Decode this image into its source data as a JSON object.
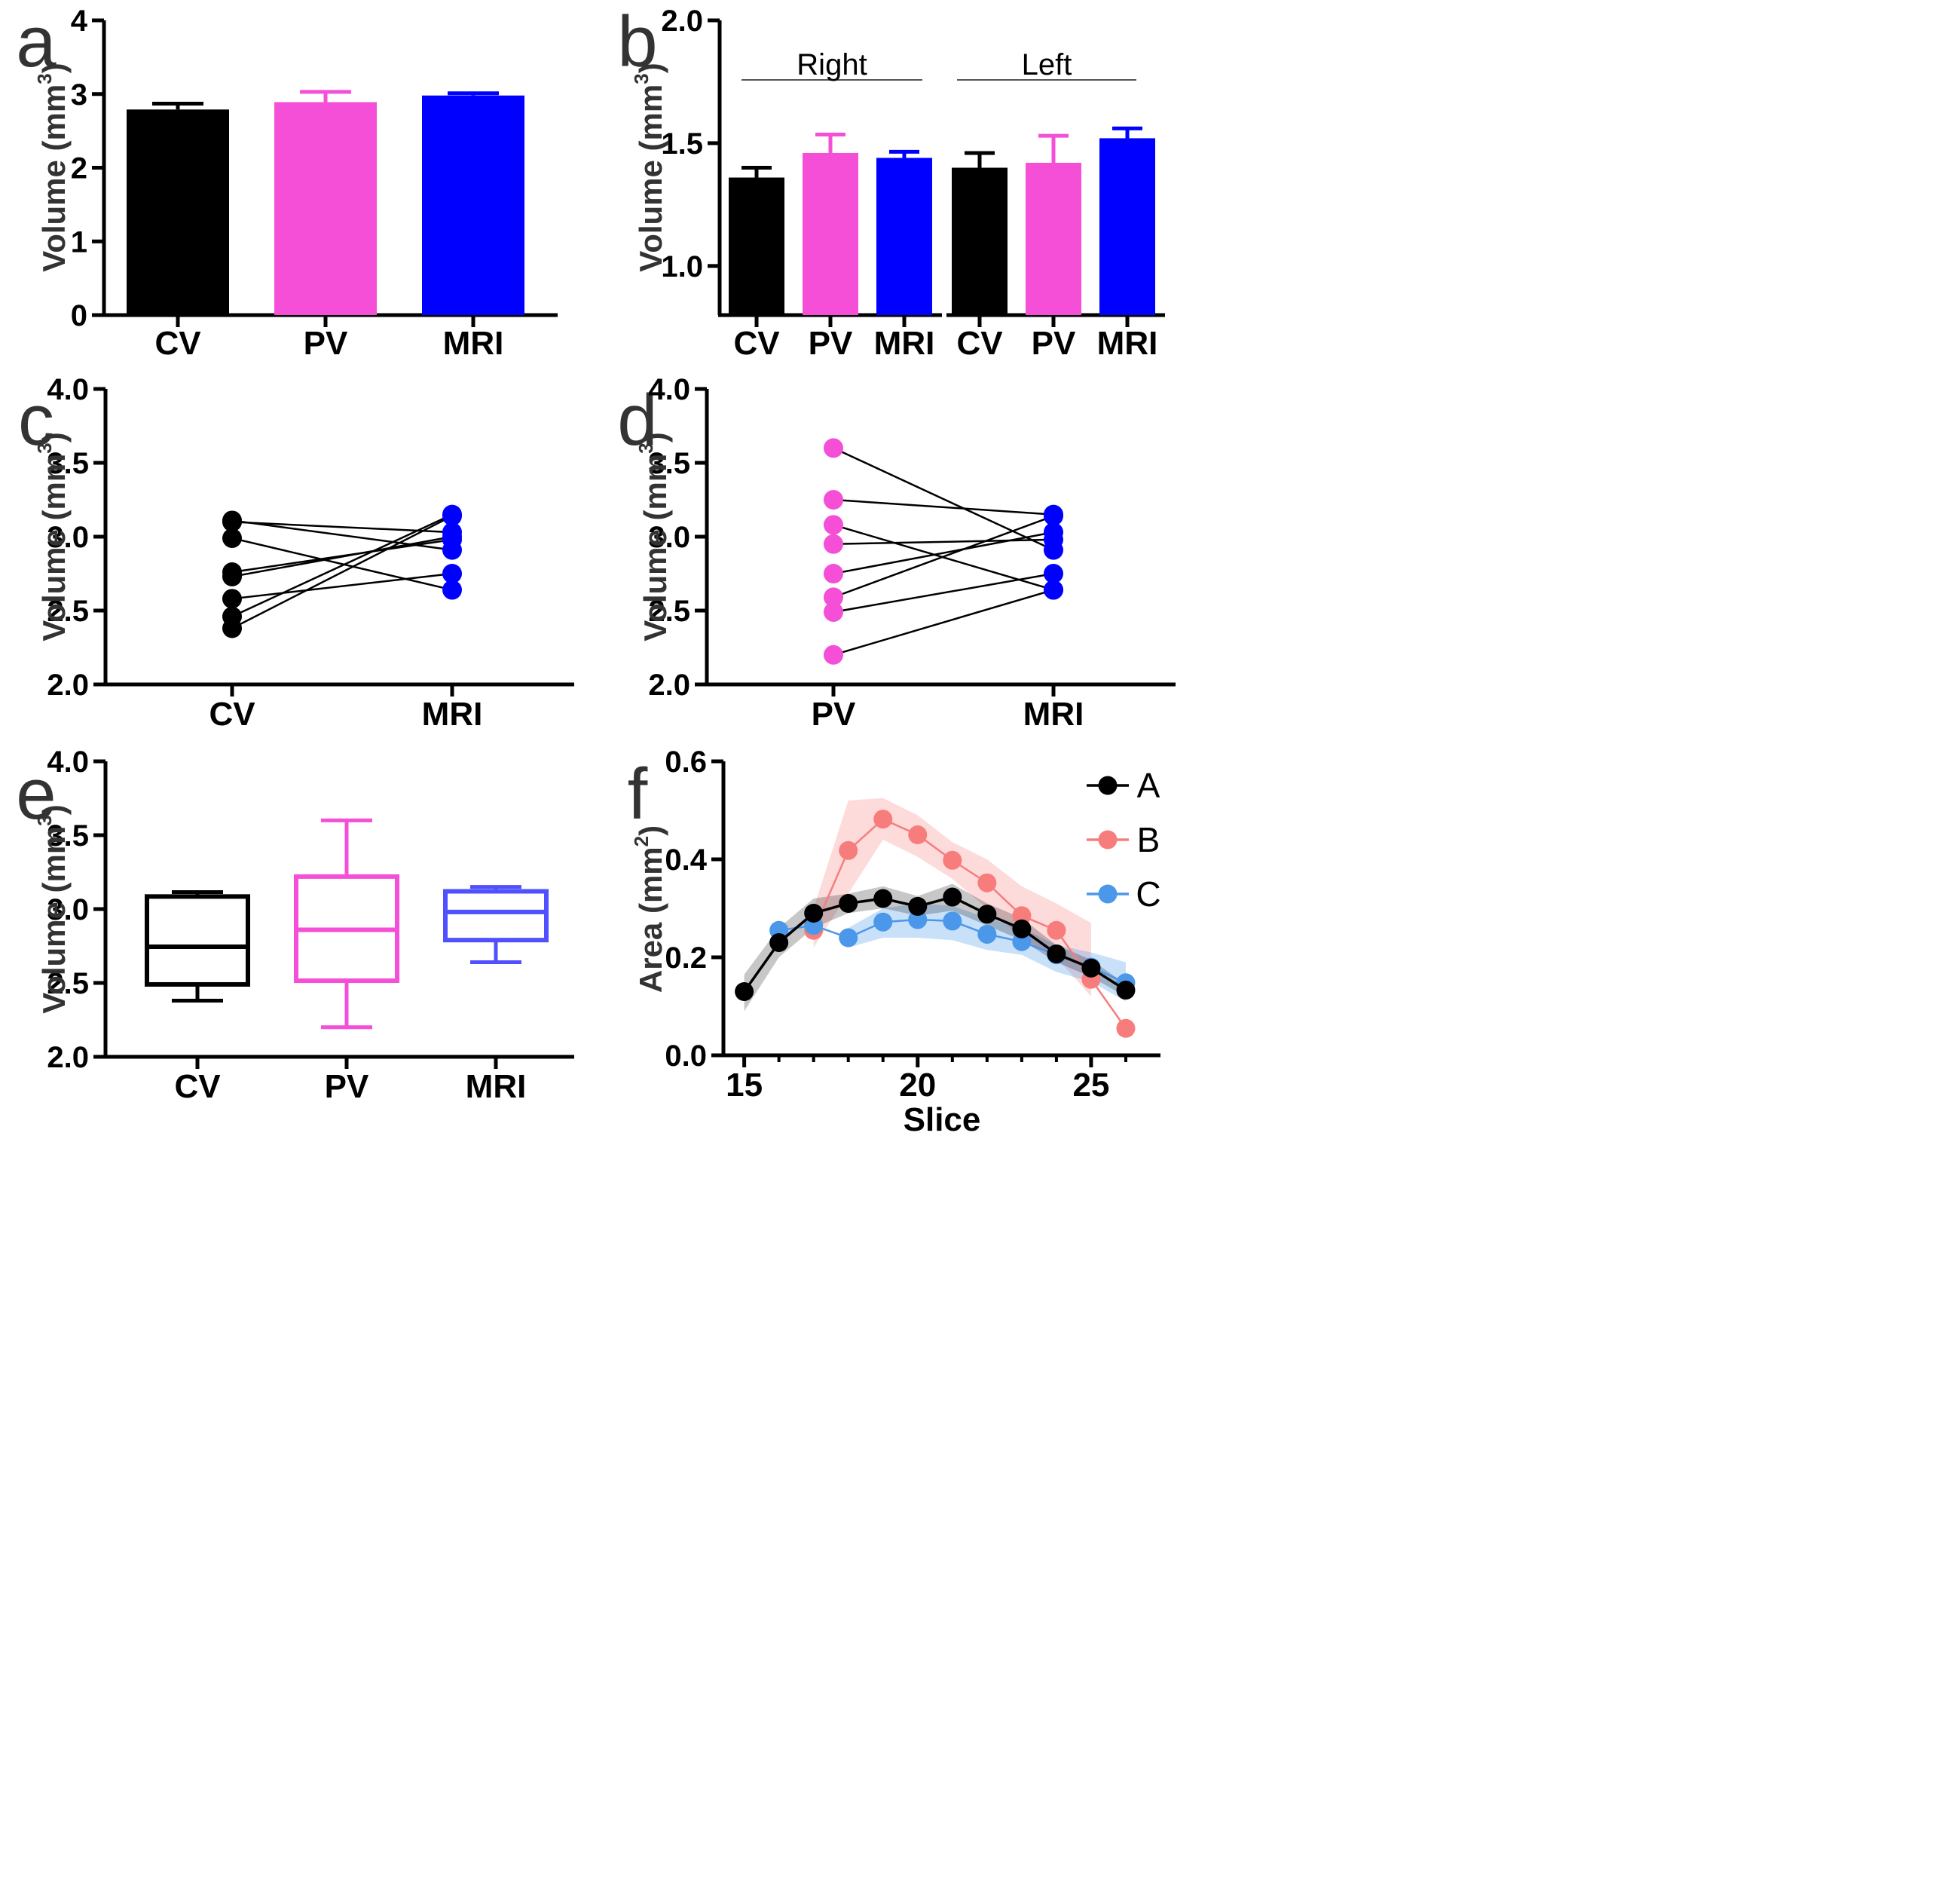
{
  "colors": {
    "cv": "#000000",
    "pv": "#f44fd6",
    "mri": "#0000ff",
    "mri_light": "#5050ff",
    "b": "#f77d7d",
    "c": "#4b97ea"
  },
  "chart_data": [
    {
      "id": "a",
      "panel_label": "a",
      "type": "bar",
      "categories": [
        "CV",
        "PV",
        "MRI"
      ],
      "values": [
        2.79,
        2.89,
        2.98
      ],
      "errors": [
        0.08,
        0.14,
        0.03
      ],
      "ylabel": "Volume (mm",
      "ylabel_sup": "3",
      "ylabel_close": ")",
      "ylim": [
        0,
        4
      ],
      "yticks": [
        "0",
        "1",
        "2",
        "3",
        "4"
      ]
    },
    {
      "id": "b",
      "panel_label": "b",
      "type": "bar",
      "groups": [
        {
          "label": "Right",
          "categories": [
            "CV",
            "PV",
            "MRI"
          ],
          "values": [
            1.36,
            1.46,
            1.44
          ],
          "errors": [
            0.04,
            0.075,
            0.025
          ]
        },
        {
          "label": "Left",
          "categories": [
            "CV",
            "PV",
            "MRI"
          ],
          "values": [
            1.4,
            1.42,
            1.52
          ],
          "errors": [
            0.06,
            0.11,
            0.04
          ]
        }
      ],
      "ylabel": "Volume (mm",
      "ylabel_sup": "3",
      "ylabel_close": ")",
      "ylim": [
        0.8,
        2.0
      ],
      "yticks": [
        "1.0",
        "1.5",
        "2.0"
      ]
    },
    {
      "id": "c",
      "panel_label": "c",
      "type": "scatter",
      "categories": [
        "CV",
        "MRI"
      ],
      "pairs": [
        [
          3.11,
          2.91
        ],
        [
          3.1,
          3.03
        ],
        [
          2.99,
          2.64
        ],
        [
          2.76,
          2.98
        ],
        [
          2.73,
          3.0
        ],
        [
          2.58,
          2.75
        ],
        [
          2.46,
          3.15
        ],
        [
          2.38,
          3.14
        ]
      ],
      "ylabel": "Volume (mm",
      "ylabel_sup": "3",
      "ylabel_close": ")",
      "ylim": [
        2.0,
        4.0
      ],
      "yticks": [
        "2.0",
        "2.5",
        "3.0",
        "3.5",
        "4.0"
      ]
    },
    {
      "id": "d",
      "panel_label": "d",
      "type": "scatter",
      "categories": [
        "PV",
        "MRI"
      ],
      "pairs": [
        [
          3.6,
          2.91
        ],
        [
          3.25,
          3.15
        ],
        [
          3.08,
          2.64
        ],
        [
          2.95,
          2.98
        ],
        [
          2.75,
          3.03
        ],
        [
          2.59,
          3.14
        ],
        [
          2.49,
          2.75
        ],
        [
          2.2,
          2.64
        ]
      ],
      "ylabel": "Volume (mm",
      "ylabel_sup": "3",
      "ylabel_close": ")",
      "ylim": [
        2.0,
        4.0
      ],
      "yticks": [
        "2.0",
        "2.5",
        "3.0",
        "3.5",
        "4.0"
      ]
    },
    {
      "id": "e",
      "panel_label": "e",
      "type": "box",
      "categories": [
        "CV",
        "PV",
        "MRI"
      ],
      "boxes": [
        {
          "min": 2.38,
          "q1": 2.49,
          "median": 2.745,
          "q3": 3.085,
          "max": 3.115
        },
        {
          "min": 2.2,
          "q1": 2.515,
          "median": 2.86,
          "q3": 3.22,
          "max": 3.6
        },
        {
          "min": 2.64,
          "q1": 2.79,
          "median": 2.98,
          "q3": 3.12,
          "max": 3.15
        }
      ],
      "ylabel": "Volume (mm",
      "ylabel_sup": "3",
      "ylabel_close": ")",
      "ylim": [
        2.0,
        4.0
      ],
      "yticks": [
        "2.0",
        "2.5",
        "3.0",
        "3.5",
        "4.0"
      ]
    },
    {
      "id": "f",
      "panel_label": "f",
      "type": "line",
      "xlabel": "Slice",
      "ylabel": "Area (mm",
      "ylabel_sup": "2",
      "ylabel_close": ")",
      "xlim": [
        14.4,
        27.0
      ],
      "ylim": [
        0.0,
        0.6
      ],
      "xticks": [
        15,
        20,
        25
      ],
      "xtick_labels": [
        "15",
        "20",
        "25"
      ],
      "yticks": [
        "0.0",
        "0.2",
        "0.4",
        "0.6"
      ],
      "legend_position": "top-right",
      "series": [
        {
          "name": "B",
          "x": [
            17,
            18,
            19,
            20,
            21,
            22,
            23,
            24,
            25,
            26
          ],
          "y": [
            0.255,
            0.418,
            0.482,
            0.45,
            0.398,
            0.352,
            0.285,
            0.255,
            0.155,
            0.055
          ],
          "lower": [
            0.22,
            0.33,
            0.44,
            0.405,
            0.36,
            0.3,
            0.24,
            0.2,
            0.12,
            null
          ],
          "upper": [
            0.3,
            0.52,
            0.525,
            0.49,
            0.435,
            0.4,
            0.345,
            0.31,
            0.27,
            null
          ]
        },
        {
          "name": "C",
          "x": [
            16,
            17,
            18,
            19,
            20,
            21,
            22,
            23,
            24,
            25,
            26
          ],
          "y": [
            0.255,
            0.265,
            0.24,
            0.272,
            0.277,
            0.274,
            0.247,
            0.232,
            0.205,
            0.18,
            0.148
          ],
          "lower": [
            null,
            null,
            0.22,
            0.24,
            0.24,
            0.235,
            0.215,
            0.205,
            0.17,
            0.15,
            0.11
          ],
          "upper": [
            null,
            null,
            0.26,
            0.3,
            0.31,
            0.305,
            0.28,
            0.26,
            0.225,
            0.21,
            0.19
          ]
        },
        {
          "name": "A",
          "x": [
            15,
            16,
            17,
            18,
            19,
            20,
            21,
            22,
            23,
            24,
            25,
            26
          ],
          "y": [
            0.13,
            0.23,
            0.29,
            0.31,
            0.32,
            0.304,
            0.323,
            0.288,
            0.258,
            0.207,
            0.178,
            0.133
          ],
          "lower": [
            0.09,
            0.2,
            0.26,
            0.29,
            0.3,
            0.285,
            0.295,
            0.265,
            0.235,
            0.19,
            0.16,
            0.12
          ],
          "upper": [
            0.165,
            0.26,
            0.32,
            0.33,
            0.345,
            0.325,
            0.35,
            0.31,
            0.28,
            0.225,
            0.195,
            0.145
          ]
        }
      ],
      "legend": [
        "A",
        "B",
        "C"
      ]
    }
  ]
}
